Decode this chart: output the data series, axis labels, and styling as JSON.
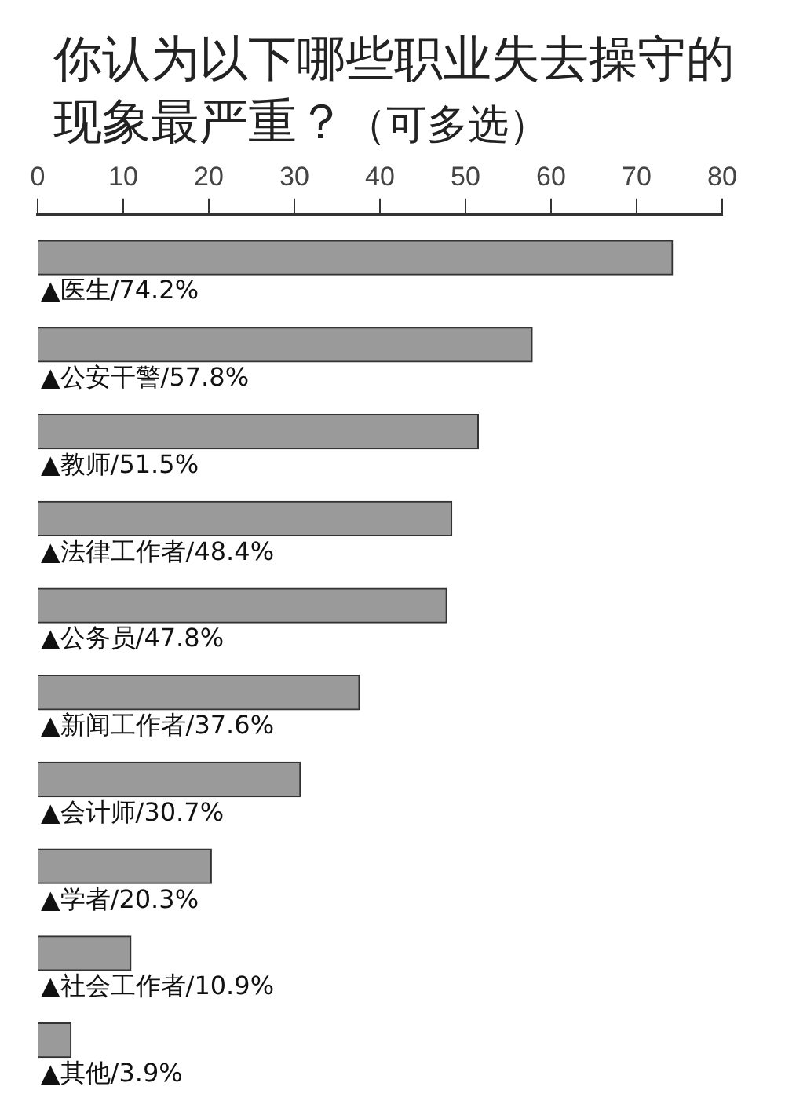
{
  "chart_data": {
    "type": "bar",
    "orientation": "horizontal",
    "title": "你认为以下哪些职业失去操守的现象最严重？",
    "subtitle": "（可多选）",
    "categories": [
      "▲医生",
      "▲公安干警",
      "▲教师",
      "▲法律工作者",
      "▲公务员",
      "▲新闻工作者",
      "▲会计师",
      "▲学者",
      "▲社会工作者",
      "▲其他"
    ],
    "values": [
      74.2,
      57.8,
      51.5,
      48.4,
      47.8,
      37.6,
      30.7,
      20.3,
      10.9,
      3.9
    ],
    "value_labels": [
      "/74.2%",
      "/57.8%",
      "/51.5%",
      "/48.4%",
      "/47.8%",
      "/37.6%",
      "/30.7%",
      "/20.3%",
      "/10.9%",
      "/3.9%"
    ],
    "color": "#9a9a9a",
    "xlim": [
      0,
      80
    ],
    "xticks": [
      0,
      10,
      20,
      30,
      40,
      50,
      60,
      70,
      80
    ],
    "grid": false,
    "legend": false
  }
}
